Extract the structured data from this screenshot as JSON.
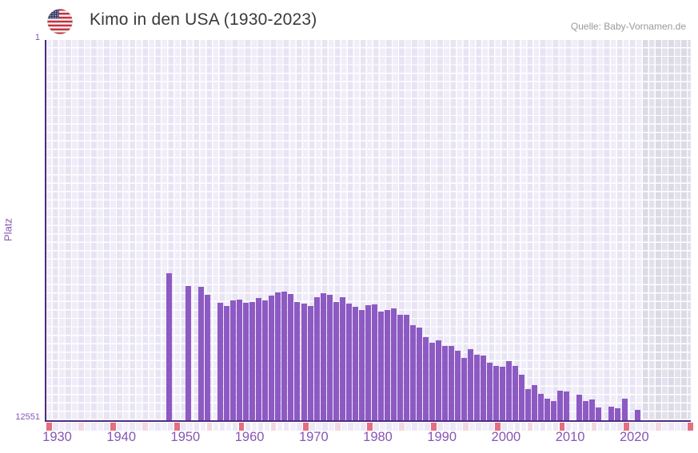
{
  "header": {
    "title": "Kimo in den USA (1930-2023)",
    "source": "Quelle: Baby-Vornamen.de",
    "flag_icon": "us-flag-icon"
  },
  "chart_data": {
    "type": "bar",
    "title": "Kimo in den USA (1930-2023)",
    "xlabel": "",
    "ylabel": "Platz",
    "legend": "none",
    "grid": true,
    "y_axis": {
      "top_tick": "1",
      "bottom_tick": "12551",
      "min": 1,
      "max": 12551,
      "inverted": true,
      "scale": "linear"
    },
    "x_axis": {
      "tick_labels": [
        "1930",
        "1940",
        "1950",
        "1960",
        "1970",
        "1980",
        "1990",
        "2000",
        "2010",
        "2020"
      ],
      "range_years": [
        1928,
        2030
      ],
      "minor_tick_every": 5,
      "major_tick_every": 10
    },
    "no_data_region": {
      "from_year": 2022,
      "to_year": 2030
    },
    "points": [
      {
        "year": 1947,
        "rank": 7710
      },
      {
        "year": 1950,
        "rank": 8110
      },
      {
        "year": 1952,
        "rank": 8140
      },
      {
        "year": 1953,
        "rank": 8400
      },
      {
        "year": 1955,
        "rank": 8680
      },
      {
        "year": 1956,
        "rank": 8780
      },
      {
        "year": 1957,
        "rank": 8590
      },
      {
        "year": 1958,
        "rank": 8560
      },
      {
        "year": 1959,
        "rank": 8680
      },
      {
        "year": 1960,
        "rank": 8660
      },
      {
        "year": 1961,
        "rank": 8510
      },
      {
        "year": 1962,
        "rank": 8600
      },
      {
        "year": 1963,
        "rank": 8440
      },
      {
        "year": 1964,
        "rank": 8320
      },
      {
        "year": 1965,
        "rank": 8300
      },
      {
        "year": 1966,
        "rank": 8390
      },
      {
        "year": 1967,
        "rank": 8650
      },
      {
        "year": 1968,
        "rank": 8700
      },
      {
        "year": 1969,
        "rank": 8770
      },
      {
        "year": 1970,
        "rank": 8500
      },
      {
        "year": 1971,
        "rank": 8350
      },
      {
        "year": 1972,
        "rank": 8400
      },
      {
        "year": 1973,
        "rank": 8640
      },
      {
        "year": 1974,
        "rank": 8480
      },
      {
        "year": 1975,
        "rank": 8700
      },
      {
        "year": 1976,
        "rank": 8810
      },
      {
        "year": 1977,
        "rank": 8900
      },
      {
        "year": 1978,
        "rank": 8750
      },
      {
        "year": 1979,
        "rank": 8720
      },
      {
        "year": 1980,
        "rank": 8970
      },
      {
        "year": 1981,
        "rank": 8920
      },
      {
        "year": 1982,
        "rank": 8860
      },
      {
        "year": 1983,
        "rank": 9060
      },
      {
        "year": 1984,
        "rank": 9060
      },
      {
        "year": 1985,
        "rank": 9410
      },
      {
        "year": 1986,
        "rank": 9500
      },
      {
        "year": 1987,
        "rank": 9810
      },
      {
        "year": 1988,
        "rank": 9980
      },
      {
        "year": 1989,
        "rank": 9920
      },
      {
        "year": 1990,
        "rank": 10100
      },
      {
        "year": 1991,
        "rank": 10100
      },
      {
        "year": 1992,
        "rank": 10250
      },
      {
        "year": 1993,
        "rank": 10480
      },
      {
        "year": 1994,
        "rank": 10200
      },
      {
        "year": 1995,
        "rank": 10380
      },
      {
        "year": 1996,
        "rank": 10420
      },
      {
        "year": 1997,
        "rank": 10640
      },
      {
        "year": 1998,
        "rank": 10750
      },
      {
        "year": 1999,
        "rank": 10780
      },
      {
        "year": 2000,
        "rank": 10590
      },
      {
        "year": 2001,
        "rank": 10750
      },
      {
        "year": 2002,
        "rank": 11040
      },
      {
        "year": 2003,
        "rank": 11520
      },
      {
        "year": 2004,
        "rank": 11380
      },
      {
        "year": 2005,
        "rank": 11670
      },
      {
        "year": 2006,
        "rank": 11830
      },
      {
        "year": 2007,
        "rank": 11910
      },
      {
        "year": 2008,
        "rank": 11580
      },
      {
        "year": 2009,
        "rank": 11600
      },
      {
        "year": 2011,
        "rank": 11710
      },
      {
        "year": 2012,
        "rank": 11910
      },
      {
        "year": 2013,
        "rank": 11870
      },
      {
        "year": 2014,
        "rank": 12120
      },
      {
        "year": 2016,
        "rank": 12090
      },
      {
        "year": 2017,
        "rank": 12160
      },
      {
        "year": 2018,
        "rank": 11830
      },
      {
        "year": 2020,
        "rank": 12200
      }
    ]
  },
  "colors": {
    "bar": "#8d5ac3",
    "axis": "#4d2c82",
    "tick-text": "#8756b4",
    "title-color": "#3a3a3a",
    "source-color": "#999999",
    "grid-a": "#f0edf9",
    "grid-b": "#e8e4f4",
    "gray-a": "#e3e1ec",
    "gray-b": "#dcdae7",
    "tickrow-a": "#f2effa",
    "tickrow-b": "#ebe7f6",
    "tick5": "#f3d8e0",
    "tick10": "#e56e80"
  }
}
